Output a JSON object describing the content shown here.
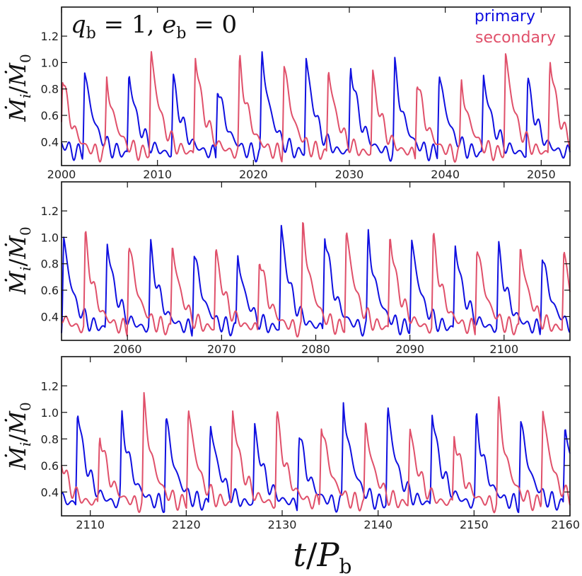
{
  "figure": {
    "annotation_lhs": "q",
    "annotation_lhs_sub": "b",
    "annotation_eq1": " = 1,   ",
    "annotation_e": "e",
    "annotation_e_sub": "b",
    "annotation_eq2": " = 0",
    "ylabel_main": "Ṁ",
    "ylabel_sub": "i",
    "ylabel_slash": "/",
    "ylabel_den": "Ṁ",
    "ylabel_den_sub": "0",
    "xlabel_t": "t",
    "xlabel_slash": "/",
    "xlabel_P": "P",
    "xlabel_sub": "b"
  },
  "chart_data": [
    {
      "type": "line",
      "title": "",
      "xlabel": "",
      "ylabel": "Ṁi/Ṁ0",
      "xlim": [
        2000,
        2053
      ],
      "ylim": [
        0.22,
        1.42
      ],
      "xticks": [
        2000,
        2010,
        2020,
        2030,
        2040,
        2050
      ],
      "yticks": [
        0.4,
        0.6,
        0.8,
        1.0,
        1.2
      ],
      "legend": [
        "primary",
        "secondary"
      ],
      "series": [
        {
          "name": "primary",
          "color": "#1010e0",
          "phase": 0.62,
          "seed": 3
        },
        {
          "name": "secondary",
          "color": "#e0506a",
          "phase": 0.12,
          "seed": 11
        }
      ]
    },
    {
      "type": "line",
      "title": "",
      "xlabel": "",
      "ylabel": "Ṁi/Ṁ0",
      "xlim": [
        2053,
        2107
      ],
      "ylim": [
        0.22,
        1.42
      ],
      "xticks": [
        2060,
        2070,
        2080,
        2090,
        2100
      ],
      "yticks": [
        0.4,
        0.6,
        0.8,
        1.0,
        1.2
      ],
      "series": [
        {
          "name": "primary",
          "color": "#1010e0",
          "phase": 0.62,
          "seed": 5
        },
        {
          "name": "secondary",
          "color": "#e0506a",
          "phase": 0.12,
          "seed": 17
        }
      ]
    },
    {
      "type": "line",
      "title": "",
      "xlabel": "t/Pb",
      "ylabel": "Ṁi/Ṁ0",
      "xlim": [
        2107,
        2160
      ],
      "ylim": [
        0.22,
        1.42
      ],
      "xticks": [
        2110,
        2120,
        2130,
        2140,
        2150,
        2160
      ],
      "yticks": [
        0.4,
        0.6,
        0.8,
        1.0,
        1.2
      ],
      "series": [
        {
          "name": "primary",
          "color": "#1010e0",
          "phase": 0.62,
          "seed": 7
        },
        {
          "name": "secondary",
          "color": "#e0506a",
          "phase": 0.12,
          "seed": 23
        }
      ]
    }
  ],
  "legend": {
    "primary_label": "primary",
    "secondary_label": "secondary",
    "primary_color": "#1010e0",
    "secondary_color": "#e0506a"
  }
}
